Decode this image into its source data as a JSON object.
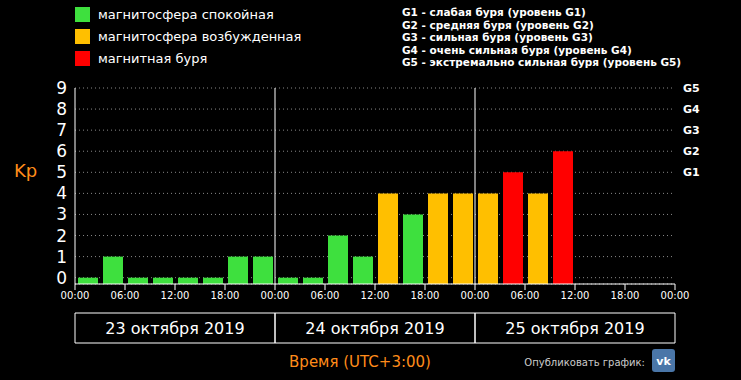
{
  "chart_data": {
    "type": "bar",
    "y_label": "Kp",
    "x_label": "Время (UTC+3:00)",
    "x": [
      1.5,
      4.5,
      7.5,
      10.5,
      13.5,
      16.5,
      19.5,
      22.5,
      25.5,
      28.5,
      31.5,
      34.5,
      37.5,
      40.5,
      43.5,
      46.5,
      49.5,
      52.5,
      55.5,
      58.5
    ],
    "values": [
      0,
      1,
      0,
      0,
      0,
      0,
      1,
      1,
      0,
      0,
      2,
      1,
      4,
      3,
      4,
      4,
      4,
      5,
      4,
      6
    ],
    "colors": [
      "#3ee03e",
      "#3ee03e",
      "#3ee03e",
      "#3ee03e",
      "#3ee03e",
      "#3ee03e",
      "#3ee03e",
      "#3ee03e",
      "#3ee03e",
      "#3ee03e",
      "#3ee03e",
      "#3ee03e",
      "#ffbf00",
      "#3ee03e",
      "#ffbf00",
      "#ffbf00",
      "#ffbf00",
      "#ff0000",
      "#ffbf00",
      "#ff0000"
    ],
    "xlim": [
      0,
      72
    ],
    "xticks": [
      {
        "value": 0,
        "label": "00:00"
      },
      {
        "value": 6,
        "label": "06:00"
      },
      {
        "value": 12,
        "label": "12:00"
      },
      {
        "value": 18,
        "label": "18:00"
      },
      {
        "value": 24,
        "label": "00:00"
      },
      {
        "value": 30,
        "label": "06:00"
      },
      {
        "value": 36,
        "label": "12:00"
      },
      {
        "value": 42,
        "label": "18:00"
      },
      {
        "value": 48,
        "label": "00:00"
      },
      {
        "value": 54,
        "label": "06:00"
      },
      {
        "value": 60,
        "label": "12:00"
      },
      {
        "value": 66,
        "label": "18:00"
      },
      {
        "value": 72,
        "label": "00:00"
      }
    ],
    "ylim": [
      -0.3,
      9
    ],
    "yticks": [
      0,
      1,
      2,
      3,
      4,
      5,
      6,
      7,
      8,
      9
    ],
    "y2lim": [
      -0.3,
      9
    ],
    "y2ticks": [
      {
        "value": 5,
        "label": "G1"
      },
      {
        "value": 6,
        "label": "G2"
      },
      {
        "value": 7,
        "label": "G3"
      },
      {
        "value": 8,
        "label": "G4"
      },
      {
        "value": 9,
        "label": "G5"
      }
    ],
    "grid": true,
    "legend": "top-left",
    "color_key": [
      {
        "name": "магнитосфера спокойная",
        "color": "#3ee03e"
      },
      {
        "name": "магнитосфера возбужденная",
        "color": "#ffbf00"
      },
      {
        "name": "магнитная буря",
        "color": "#ff0000"
      }
    ],
    "storm_levels": [
      "G1 - слабая буря (уровень G1)",
      "G2 - средняя буря (уровень G2)",
      "G3 - сильная буря (уровень G3)",
      "G4 - очень сильная буря (уровень G4)",
      "G5 - экстремально сильная буря (уровень G5)"
    ],
    "x_groups": [
      {
        "label": "23 октября 2019",
        "xlim": [
          0,
          24
        ]
      },
      {
        "label": "24 октября 2019",
        "xlim": [
          24,
          48
        ]
      },
      {
        "label": "25 октября 2019",
        "xlim": [
          48,
          72
        ]
      }
    ],
    "footer": "Опубликовать график:",
    "share_icon": "vk"
  }
}
